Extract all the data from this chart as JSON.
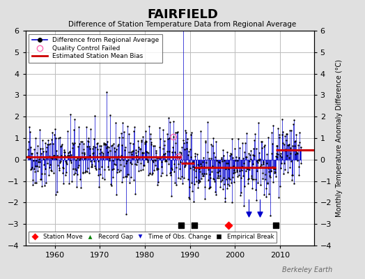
{
  "title": "FAIRFIELD",
  "subtitle": "Difference of Station Temperature Data from Regional Average",
  "ylabel_right": "Monthly Temperature Anomaly Difference (°C)",
  "xlim": [
    1953.5,
    2017.5
  ],
  "ylim": [
    -4,
    6
  ],
  "yticks": [
    -4,
    -3,
    -2,
    -1,
    0,
    1,
    2,
    3,
    4,
    5,
    6
  ],
  "xticks": [
    1960,
    1970,
    1980,
    1990,
    2000,
    2010
  ],
  "background_color": "#e0e0e0",
  "plot_bg_color": "#ffffff",
  "grid_color": "#bbbbbb",
  "line_color": "#0000cc",
  "bias_color": "#cc0000",
  "marker_color": "#000000",
  "qc_color": "#ff69b4",
  "station_move_year": 1998.5,
  "event_y": -3.05,
  "empirical_break_years": [
    1988.0,
    1991.0,
    2009.0
  ],
  "time_obs_years": [
    2003.0,
    2005.5
  ],
  "bias_segments": [
    {
      "x": [
        1953.5,
        1988.0
      ],
      "y": [
        0.12,
        0.12
      ]
    },
    {
      "x": [
        1988.0,
        1991.0
      ],
      "y": [
        -0.18,
        -0.18
      ]
    },
    {
      "x": [
        1991.0,
        1998.5
      ],
      "y": [
        -0.35,
        -0.35
      ]
    },
    {
      "x": [
        1998.5,
        2009.0
      ],
      "y": [
        -0.35,
        -0.35
      ]
    },
    {
      "x": [
        2009.0,
        2017.5
      ],
      "y": [
        0.45,
        0.45
      ]
    }
  ],
  "watermark": "Berkeley Earth",
  "seed": 42,
  "start_year": 1954.0,
  "end_year": 2014.7
}
